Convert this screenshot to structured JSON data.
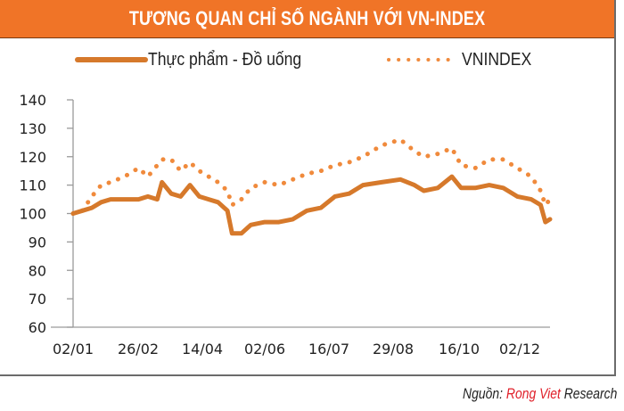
{
  "header": {
    "title": "TƯƠNG QUAN CHỈ SỐ NGÀNH VỚI VN-INDEX"
  },
  "legend": {
    "series1_label": "Thực phẩm - Đồ uống",
    "series2_label": "VNINDEX"
  },
  "source": {
    "prefix": "Nguồn: ",
    "brand": "Rong Viet",
    "suffix": " Research"
  },
  "colors": {
    "header": "#f07427",
    "series1": "#d6792b",
    "series2": "#f08a3c",
    "axis": "#9a9a9a",
    "brand": "#e0202a"
  },
  "chart_data": {
    "type": "line",
    "title": "TƯƠNG QUAN CHỈ SỐ NGÀNH VỚI VN-INDEX",
    "xlabel": "",
    "ylabel": "",
    "ylim": [
      60,
      140
    ],
    "yticks": [
      60,
      70,
      80,
      90,
      100,
      110,
      120,
      130,
      140
    ],
    "xticks": [
      "02/01",
      "26/02",
      "14/04",
      "02/06",
      "16/07",
      "29/08",
      "16/10",
      "02/12"
    ],
    "grid": false,
    "legend_position": "top",
    "x": [
      0,
      2,
      4,
      6,
      8,
      11,
      14,
      16,
      18,
      19,
      21,
      23,
      25,
      27,
      29,
      31,
      33,
      34,
      36,
      38,
      41,
      44,
      47,
      50,
      53,
      56,
      59,
      62,
      66,
      70,
      73,
      75,
      78,
      81,
      83,
      86,
      89,
      92,
      95,
      98,
      100,
      101,
      102
    ],
    "series": [
      {
        "name": "Thực phẩm - Đồ uống",
        "style": "solid",
        "values": [
          100,
          101,
          102,
          104,
          105,
          105,
          105,
          106,
          105,
          111,
          107,
          106,
          110,
          106,
          105,
          104,
          101,
          93,
          93,
          96,
          97,
          97,
          98,
          101,
          102,
          106,
          107,
          110,
          111,
          112,
          110,
          108,
          109,
          113,
          109,
          109,
          110,
          109,
          106,
          105,
          103,
          97,
          98
        ]
      },
      {
        "name": "VNINDEX",
        "style": "dotted",
        "values": [
          100,
          101,
          106,
          110,
          111,
          113,
          116,
          113,
          117,
          119,
          119,
          115,
          118,
          115,
          113,
          111,
          108,
          103,
          105,
          109,
          111,
          110,
          112,
          114,
          115,
          117,
          118,
          120,
          124,
          126,
          122,
          120,
          121,
          123,
          117,
          116,
          119,
          119,
          116,
          113,
          108,
          103,
          105
        ]
      }
    ],
    "source": "Nguồn: Rong Viet Research"
  }
}
